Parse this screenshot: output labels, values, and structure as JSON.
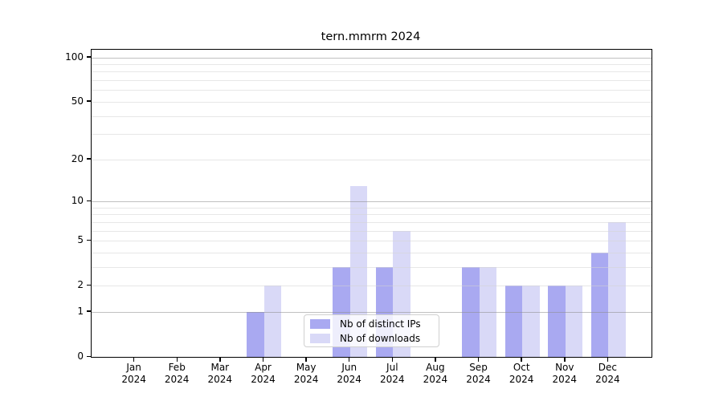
{
  "chart_data": {
    "type": "bar",
    "title": "tern.mmrm 2024",
    "year_label": "2024",
    "months": [
      "Jan",
      "Feb",
      "Mar",
      "Apr",
      "May",
      "Jun",
      "Jul",
      "Aug",
      "Sep",
      "Oct",
      "Nov",
      "Dec"
    ],
    "series": [
      {
        "name": "Nb of distinct IPs",
        "color": "#a9a9f1",
        "values": [
          0,
          0,
          0,
          1,
          0,
          3,
          3,
          0,
          3,
          2,
          2,
          4
        ]
      },
      {
        "name": "Nb of downloads",
        "color": "#d9d9f7",
        "values": [
          0,
          0,
          0,
          2,
          0,
          13,
          6,
          0,
          3,
          2,
          2,
          7
        ]
      }
    ],
    "y_axis": {
      "scale": "log1p",
      "tick_labels": [
        100,
        50,
        20,
        10,
        5,
        2,
        1,
        0
      ],
      "ylim": [
        0,
        110
      ]
    },
    "grid": {
      "major_lines": [
        1,
        10,
        100
      ],
      "minor_lines": [
        2,
        3,
        4,
        5,
        6,
        7,
        8,
        9,
        20,
        30,
        40,
        50,
        60,
        70,
        80,
        90
      ],
      "enabled": true
    },
    "legend": {
      "position": "lower center"
    },
    "colors": {
      "spine": "#000000",
      "major_grid": "#b4b4b4",
      "minor_grid": "#e6e6e6",
      "background": "#ffffff"
    }
  }
}
